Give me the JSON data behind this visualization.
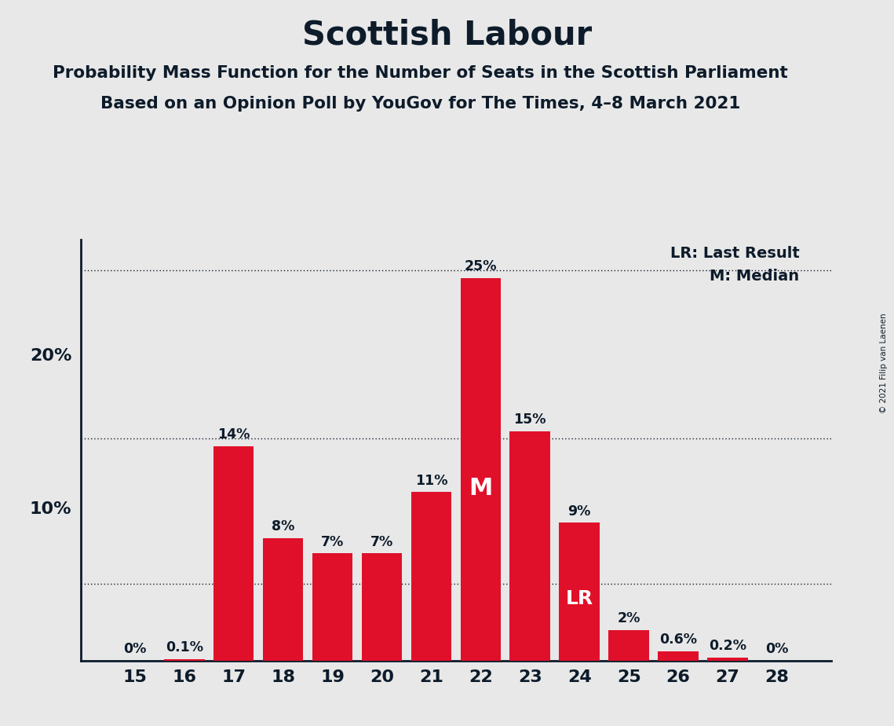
{
  "title": "Scottish Labour",
  "subtitle1": "Probability Mass Function for the Number of Seats in the Scottish Parliament",
  "subtitle2": "Based on an Opinion Poll by YouGov for The Times, 4–8 March 2021",
  "copyright": "© 2021 Filip van Laenen",
  "categories": [
    15,
    16,
    17,
    18,
    19,
    20,
    21,
    22,
    23,
    24,
    25,
    26,
    27,
    28
  ],
  "values": [
    0.0,
    0.1,
    14.0,
    8.0,
    7.0,
    7.0,
    11.0,
    25.0,
    15.0,
    9.0,
    2.0,
    0.6,
    0.2,
    0.0
  ],
  "labels": [
    "0%",
    "0.1%",
    "14%",
    "8%",
    "7%",
    "7%",
    "11%",
    "25%",
    "15%",
    "9%",
    "2%",
    "0.6%",
    "0.2%",
    "0%"
  ],
  "bar_color": "#E0102A",
  "background_color": "#E8E8E8",
  "text_color": "#0D1B2A",
  "median_seat": 22,
  "last_result_seat": 24,
  "legend_lr": "LR: Last Result",
  "legend_m": "M: Median",
  "dotted_line_y": [
    5.0,
    14.5,
    25.5
  ],
  "ylim_max": 27.5,
  "ytick_positions": [
    10,
    20
  ],
  "ytick_labels": [
    "10%",
    "20%"
  ]
}
